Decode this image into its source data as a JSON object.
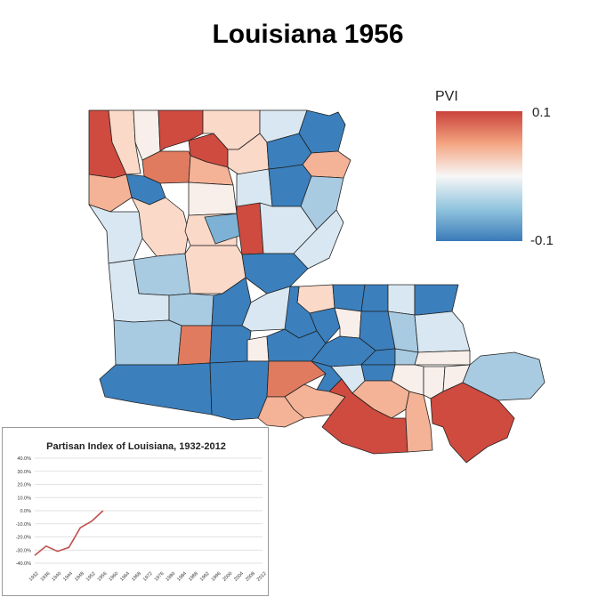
{
  "map": {
    "title": "Louisiana 1956",
    "legend": {
      "title": "PVI",
      "max_label": "0.1",
      "min_label": "-0.1",
      "colors": [
        "#c9423a",
        "#f4a582",
        "#f7f7f7",
        "#92c5de",
        "#3a7ab8"
      ]
    },
    "palette": {
      "dark_red": "#cf4a3f",
      "red": "#e07b5f",
      "light_red": "#f4b296",
      "pale_red": "#fbd9c8",
      "near_white": "#f8efea",
      "pale_blue": "#d8e7f1",
      "light_blue": "#a9cbe2",
      "blue": "#7db2d6",
      "dark_blue": "#3b7fbd"
    }
  },
  "chart_data": {
    "type": "line",
    "title": "Partisan Index of Louisiana, 1932-2012",
    "x": [
      1932,
      1936,
      1940,
      1944,
      1948,
      1952,
      1956
    ],
    "values": [
      -34,
      -27,
      -31,
      -28,
      -13,
      -8,
      0
    ],
    "x_ticks": [
      "1932",
      "1936",
      "1940",
      "1944",
      "1948",
      "1952",
      "1956",
      "1960",
      "1964",
      "1968",
      "1972",
      "1976",
      "1980",
      "1984",
      "1988",
      "1992",
      "1996",
      "2000",
      "2004",
      "2008",
      "2012"
    ],
    "y_ticks": [
      "40.0%",
      "30.0%",
      "20.0%",
      "10.0%",
      "0.0%",
      "-10.0%",
      "-20.0%",
      "-30.0%",
      "-40.0%"
    ],
    "ylim": [
      -40,
      40
    ],
    "xlim": [
      1932,
      2012
    ],
    "line_color": "#c0504d",
    "grid": true
  }
}
